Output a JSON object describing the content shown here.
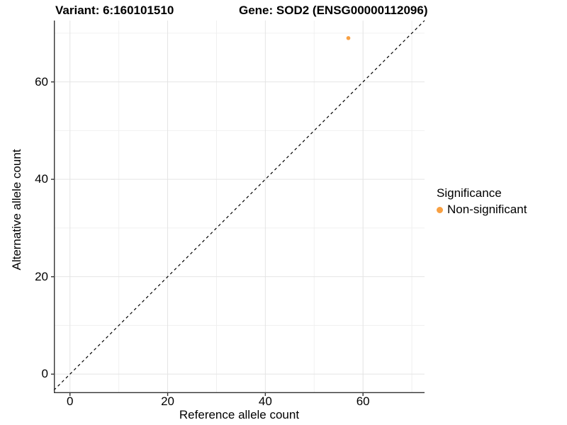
{
  "titles": {
    "variant": "Variant: 6:160101510",
    "gene": "Gene: SOD2 (ENSG00000112096)"
  },
  "chart_data": {
    "type": "scatter",
    "xlabel": "Reference allele count",
    "ylabel": "Alternative allele count",
    "x_ticks": [
      0,
      20,
      40,
      60
    ],
    "y_ticks": [
      0,
      20,
      40,
      60
    ],
    "x_minor_gridlines": [
      10,
      30,
      50,
      70
    ],
    "y_minor_gridlines": [
      10,
      30,
      50,
      70
    ],
    "xlim": [
      -3.3,
      72.6
    ],
    "ylim": [
      -3.9,
      72.6
    ],
    "grid": true,
    "legend_position": "right",
    "points": [
      {
        "x": 57,
        "y": 69,
        "series": "Non-significant"
      }
    ],
    "reference_line": {
      "slope": 1,
      "intercept": 0,
      "style": "dashed",
      "color": "#000000"
    },
    "legend": {
      "title": "Significance",
      "items": [
        {
          "label": "Non-significant",
          "color": "#F8A042"
        }
      ]
    },
    "colors": {
      "point": "#F8A042",
      "grid_major": "#E4E4E4",
      "grid_minor": "#F0F0F0",
      "axis_line": "#333333",
      "text": "#000000"
    }
  }
}
